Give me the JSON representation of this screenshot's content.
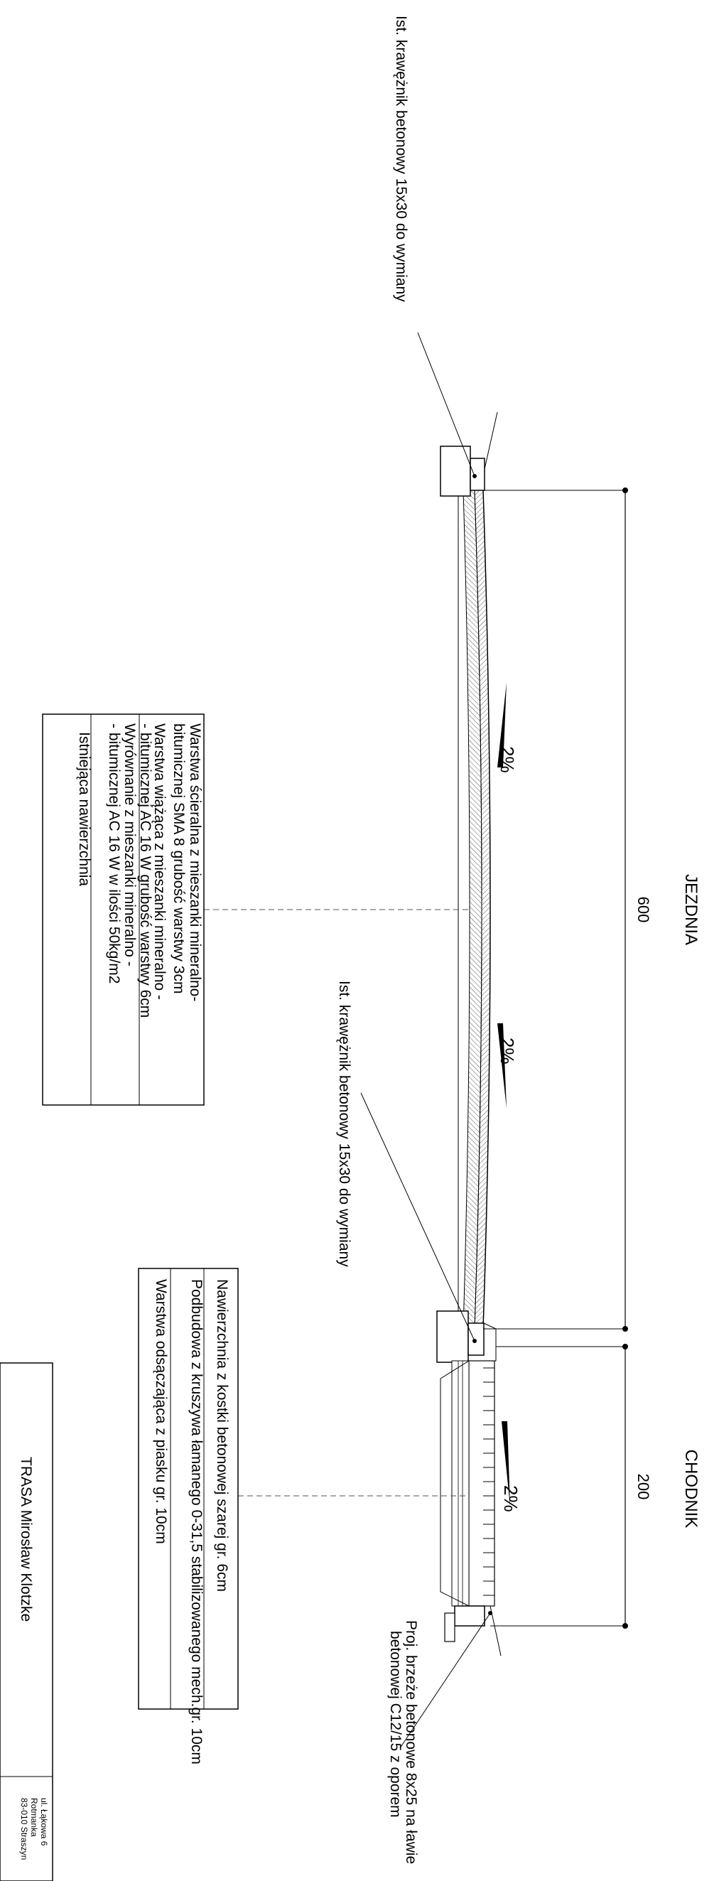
{
  "sections": {
    "roadway": "JEZDNIA",
    "sidewalk": "CHODNIK"
  },
  "dimensions": {
    "roadway_width": "600",
    "sidewalk_width": "200"
  },
  "slopes": {
    "roadway_left": "2%",
    "roadway_right": "2%",
    "sidewalk": "2%"
  },
  "callouts": {
    "curb_left": "Ist. krawężnik betonowy 15x30 do wymiany",
    "curb_middle": "Ist. krawężnik betonowy 15x30 do wymiany",
    "edge_line1": "Proj. brzeże betonowe 8x25 na ławie",
    "edge_line2": "betonowej C12/15 z oporem"
  },
  "roadway_layers": {
    "l1a": "Warstwa ścieralna z mieszanki mineralno-",
    "l1b": "bitumicznej SMA 8 grubość warstwy 3cm",
    "l2a": "Warstwa wiążąca z mieszanki mineralno -",
    "l2b": "- bitumicznej AC 16 W grubość warstwy 6cm",
    "l3a": "Wyrównanie z mieszanki mineralno -",
    "l3b": "- bitumicznej AC 16 W w ilości 50kg/m2",
    "l4": "Istniejąca nawierzchnia"
  },
  "sidewalk_layers": {
    "l1": "Nawierzchnia z kostki betonowej szarej gr. 6cm",
    "l2": "Podbudowa z kruszywa łamanego 0-31,5 stabilizowanego mech.gr. 10cm",
    "l3": "Warstwa  odsączająca z piasku gr. 10cm"
  },
  "title_block": {
    "company": "TRASA Mirosław Klotzke",
    "addr1": "ul. Łąkowa 6",
    "addr2": "Rotmanka",
    "addr3": "83-010 Straszyn"
  },
  "colors": {
    "line": "#000000",
    "hatch": "#555555",
    "background": "#ffffff"
  }
}
